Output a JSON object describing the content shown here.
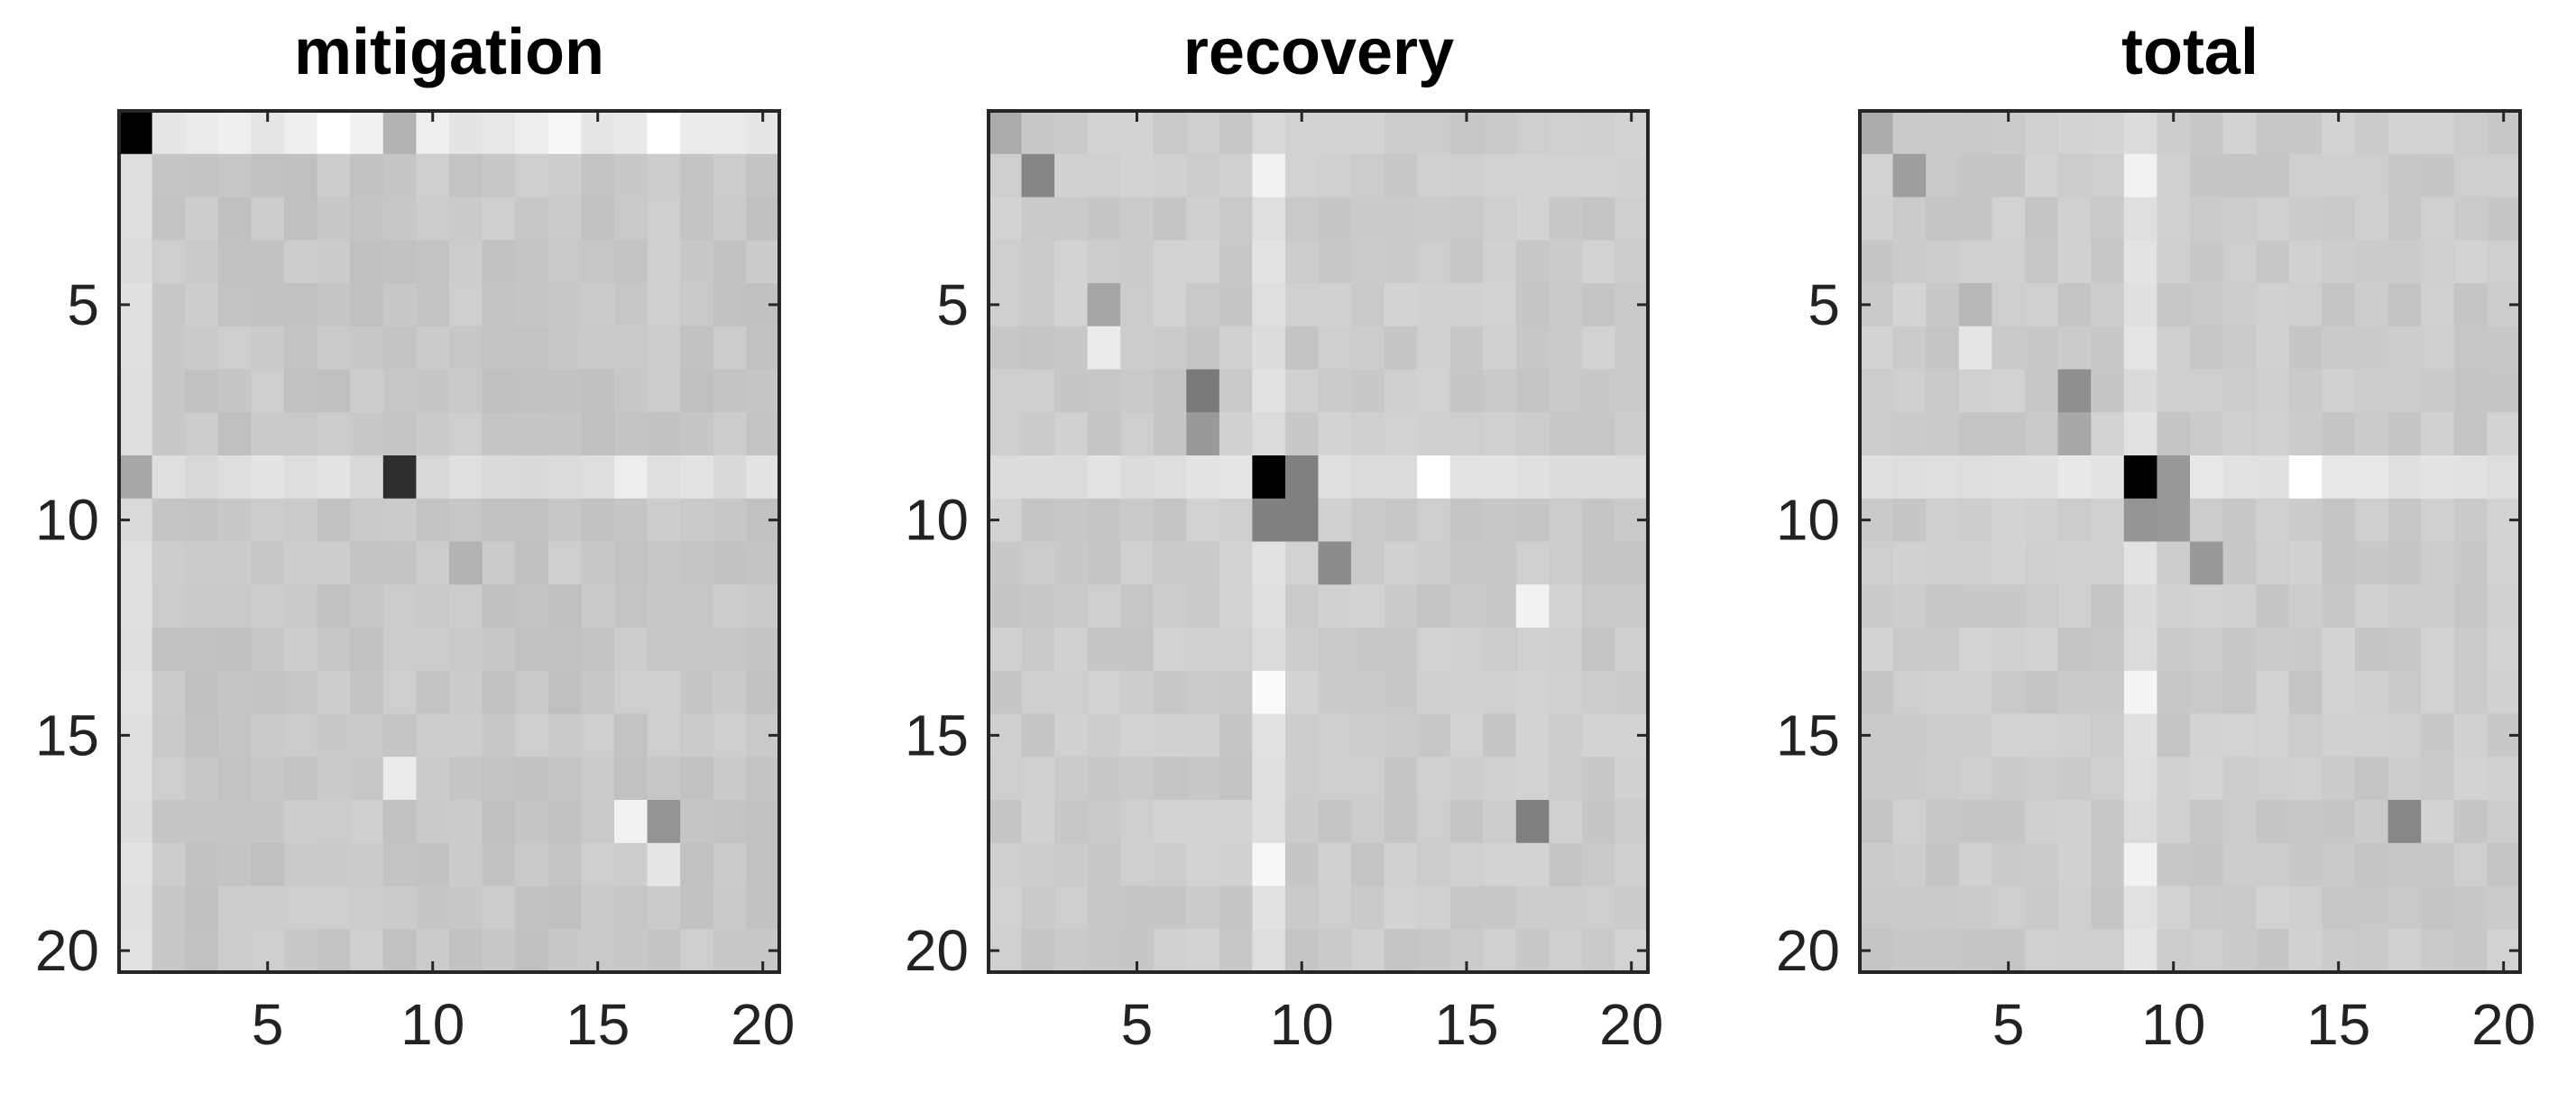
{
  "chart_data": [
    {
      "type": "heatmap",
      "title": "mitigation",
      "rows": 20,
      "cols": 20,
      "xticks": [
        5,
        10,
        15,
        20
      ],
      "yticks": [
        5,
        10,
        15,
        20
      ],
      "colormap": "gray",
      "base_value": 0.78,
      "background_band": {
        "row": 1,
        "value": 0.92
      },
      "background_column": {
        "col": 1,
        "value": 0.87
      },
      "row9_band": {
        "row": 9,
        "value": 0.87
      },
      "cells": [
        {
          "row": 1,
          "col": 1,
          "value": 0.0
        },
        {
          "row": 1,
          "col": 7,
          "value": 1.0
        },
        {
          "row": 1,
          "col": 9,
          "value": 0.7
        },
        {
          "row": 1,
          "col": 14,
          "value": 0.97
        },
        {
          "row": 1,
          "col": 17,
          "value": 1.0
        },
        {
          "row": 9,
          "col": 1,
          "value": 0.66
        },
        {
          "row": 9,
          "col": 9,
          "value": 0.18
        },
        {
          "row": 9,
          "col": 16,
          "value": 0.93
        },
        {
          "row": 16,
          "col": 9,
          "value": 0.92
        },
        {
          "row": 17,
          "col": 16,
          "value": 0.95
        },
        {
          "row": 17,
          "col": 17,
          "value": 0.58
        },
        {
          "row": 18,
          "col": 17,
          "value": 0.9
        },
        {
          "row": 11,
          "col": 11,
          "value": 0.7
        }
      ]
    },
    {
      "type": "heatmap",
      "title": "recovery",
      "rows": 20,
      "cols": 20,
      "xticks": [
        5,
        10,
        15,
        20
      ],
      "yticks": [
        5,
        10,
        15,
        20
      ],
      "colormap": "gray",
      "base_value": 0.8,
      "row9_band": {
        "row": 9,
        "value": 0.88
      },
      "col9_band": {
        "col": 9,
        "value": 0.87
      },
      "cells": [
        {
          "row": 1,
          "col": 1,
          "value": 0.67
        },
        {
          "row": 2,
          "col": 2,
          "value": 0.52
        },
        {
          "row": 5,
          "col": 4,
          "value": 0.65
        },
        {
          "row": 6,
          "col": 4,
          "value": 0.92
        },
        {
          "row": 7,
          "col": 7,
          "value": 0.48
        },
        {
          "row": 8,
          "col": 7,
          "value": 0.6
        },
        {
          "row": 9,
          "col": 9,
          "value": 0.0
        },
        {
          "row": 9,
          "col": 10,
          "value": 0.5
        },
        {
          "row": 9,
          "col": 14,
          "value": 1.0
        },
        {
          "row": 10,
          "col": 9,
          "value": 0.5
        },
        {
          "row": 10,
          "col": 10,
          "value": 0.5
        },
        {
          "row": 11,
          "col": 11,
          "value": 0.55
        },
        {
          "row": 2,
          "col": 9,
          "value": 0.95
        },
        {
          "row": 14,
          "col": 9,
          "value": 0.98
        },
        {
          "row": 12,
          "col": 17,
          "value": 0.95
        },
        {
          "row": 17,
          "col": 17,
          "value": 0.5
        },
        {
          "row": 18,
          "col": 9,
          "value": 0.97
        }
      ]
    },
    {
      "type": "heatmap",
      "title": "total",
      "rows": 20,
      "cols": 20,
      "xticks": [
        5,
        10,
        15,
        20
      ],
      "yticks": [
        5,
        10,
        15,
        20
      ],
      "colormap": "gray",
      "base_value": 0.8,
      "row9_band": {
        "row": 9,
        "value": 0.89
      },
      "col9_band": {
        "col": 9,
        "value": 0.88
      },
      "cells": [
        {
          "row": 1,
          "col": 1,
          "value": 0.67
        },
        {
          "row": 2,
          "col": 2,
          "value": 0.62
        },
        {
          "row": 5,
          "col": 4,
          "value": 0.72
        },
        {
          "row": 6,
          "col": 4,
          "value": 0.9
        },
        {
          "row": 7,
          "col": 7,
          "value": 0.56
        },
        {
          "row": 8,
          "col": 7,
          "value": 0.66
        },
        {
          "row": 9,
          "col": 9,
          "value": 0.0
        },
        {
          "row": 9,
          "col": 10,
          "value": 0.6
        },
        {
          "row": 9,
          "col": 14,
          "value": 1.0
        },
        {
          "row": 10,
          "col": 9,
          "value": 0.58
        },
        {
          "row": 10,
          "col": 10,
          "value": 0.6
        },
        {
          "row": 11,
          "col": 11,
          "value": 0.6
        },
        {
          "row": 2,
          "col": 9,
          "value": 0.95
        },
        {
          "row": 14,
          "col": 9,
          "value": 0.96
        },
        {
          "row": 17,
          "col": 17,
          "value": 0.53
        },
        {
          "row": 18,
          "col": 9,
          "value": 0.95
        }
      ]
    }
  ]
}
